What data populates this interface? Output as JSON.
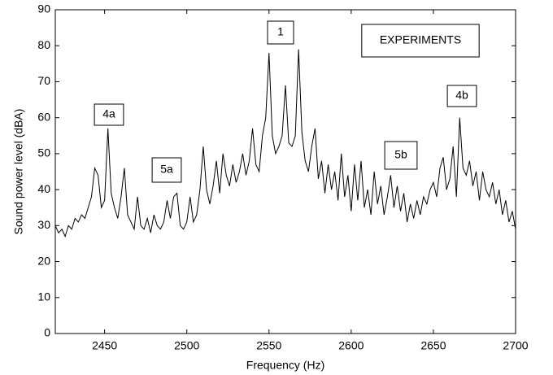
{
  "chart_data": {
    "type": "line",
    "x_label": "Frequency (Hz)",
    "y_label": "Sound power level (dBA)",
    "annotations": [
      "1",
      "4a",
      "4b",
      "5a",
      "5b",
      "EXPERIMENTS"
    ],
    "xlim": [
      2420,
      2700
    ],
    "xticks": [
      2450,
      2500,
      2550,
      2600,
      2650,
      2700
    ],
    "ylim": [
      0,
      90
    ],
    "yticks": [
      0,
      10,
      20,
      30,
      40,
      50,
      60,
      70,
      80,
      90
    ],
    "grid": false,
    "x": [
      2420,
      2422,
      2424,
      2426,
      2428,
      2430,
      2432,
      2434,
      2436,
      2438,
      2440,
      2442,
      2444,
      2446,
      2448,
      2450,
      2452,
      2454,
      2456,
      2458,
      2460,
      2462,
      2464,
      2466,
      2468,
      2470,
      2472,
      2474,
      2476,
      2478,
      2480,
      2482,
      2484,
      2486,
      2488,
      2490,
      2492,
      2494,
      2496,
      2498,
      2500,
      2502,
      2504,
      2506,
      2508,
      2510,
      2512,
      2514,
      2516,
      2518,
      2520,
      2522,
      2524,
      2526,
      2528,
      2530,
      2532,
      2534,
      2536,
      2538,
      2540,
      2542,
      2544,
      2546,
      2548,
      2550,
      2552,
      2554,
      2556,
      2558,
      2560,
      2562,
      2564,
      2566,
      2568,
      2570,
      2572,
      2574,
      2576,
      2578,
      2580,
      2582,
      2584,
      2586,
      2588,
      2590,
      2592,
      2594,
      2596,
      2598,
      2600,
      2602,
      2604,
      2606,
      2608,
      2610,
      2612,
      2614,
      2616,
      2618,
      2620,
      2622,
      2624,
      2626,
      2628,
      2630,
      2632,
      2634,
      2636,
      2638,
      2640,
      2642,
      2644,
      2646,
      2648,
      2650,
      2652,
      2654,
      2656,
      2658,
      2660,
      2662,
      2664,
      2666,
      2668,
      2670,
      2672,
      2674,
      2676,
      2678,
      2680,
      2682,
      2684,
      2686,
      2688,
      2690,
      2692,
      2694,
      2696,
      2698,
      2700
    ],
    "series": [
      {
        "color": "#000000",
        "values": [
          30,
          28,
          29,
          27,
          30,
          29,
          32,
          31,
          33,
          32,
          35,
          38,
          46,
          44,
          35,
          37,
          57,
          39,
          35,
          32,
          38,
          46,
          33,
          31,
          29,
          38,
          30,
          29,
          32,
          28,
          33,
          30,
          29,
          31,
          37,
          32,
          38,
          39,
          30,
          29,
          31,
          38,
          31,
          33,
          40,
          52,
          40,
          36,
          41,
          48,
          39,
          50,
          44,
          41,
          47,
          42,
          45,
          50,
          44,
          48,
          57,
          47,
          45,
          55,
          60,
          78,
          55,
          50,
          52,
          55,
          69,
          53,
          52,
          55,
          79,
          56,
          48,
          45,
          52,
          57,
          43,
          48,
          39,
          47,
          40,
          45,
          37,
          50,
          38,
          44,
          34,
          47,
          37,
          48,
          35,
          40,
          33,
          45,
          36,
          41,
          33,
          38,
          44,
          35,
          41,
          34,
          39,
          31,
          36,
          32,
          37,
          33,
          38,
          36,
          40,
          42,
          38,
          46,
          49,
          40,
          43,
          52,
          38,
          60,
          46,
          44,
          48,
          41,
          45,
          37,
          45,
          40,
          38,
          42,
          36,
          40,
          33,
          37,
          31,
          34,
          29
        ]
      }
    ]
  }
}
